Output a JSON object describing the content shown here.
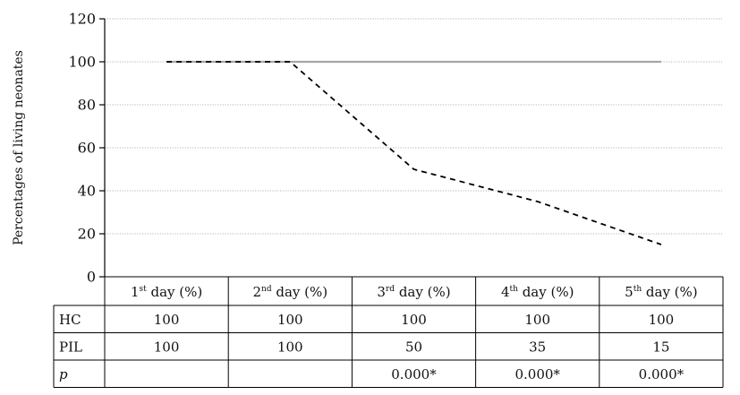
{
  "chart_data": {
    "type": "line",
    "ylabel": "Percentages of living neonates",
    "ylim": [
      0,
      120
    ],
    "yticks": [
      0,
      20,
      40,
      60,
      80,
      100,
      120
    ],
    "grid": true,
    "categories": [
      {
        "main": "1",
        "sup": "st",
        "rest": " day (%)"
      },
      {
        "main": "2",
        "sup": "nd",
        "rest": " day (%)"
      },
      {
        "main": "3",
        "sup": "rd",
        "rest": " day (%)"
      },
      {
        "main": "4",
        "sup": "th",
        "rest": " day (%)"
      },
      {
        "main": "5",
        "sup": "th",
        "rest": " day (%)"
      }
    ],
    "series": [
      {
        "name": "HC",
        "values": [
          100,
          100,
          100,
          100,
          100
        ],
        "color": "#a6a6a6",
        "style": "solid"
      },
      {
        "name": "PIL",
        "values": [
          100,
          100,
          50,
          35,
          15
        ],
        "color": "#000000",
        "style": "dashed"
      }
    ],
    "table_rows": [
      {
        "label": "HC",
        "italic": false,
        "cells": [
          "100",
          "100",
          "100",
          "100",
          "100"
        ]
      },
      {
        "label": "PIL",
        "italic": false,
        "cells": [
          "100",
          "100",
          "50",
          "35",
          "15"
        ]
      },
      {
        "label": "p",
        "italic": true,
        "cells": [
          "",
          "",
          "0.000*",
          "0.000*",
          "0.000*"
        ]
      }
    ]
  }
}
